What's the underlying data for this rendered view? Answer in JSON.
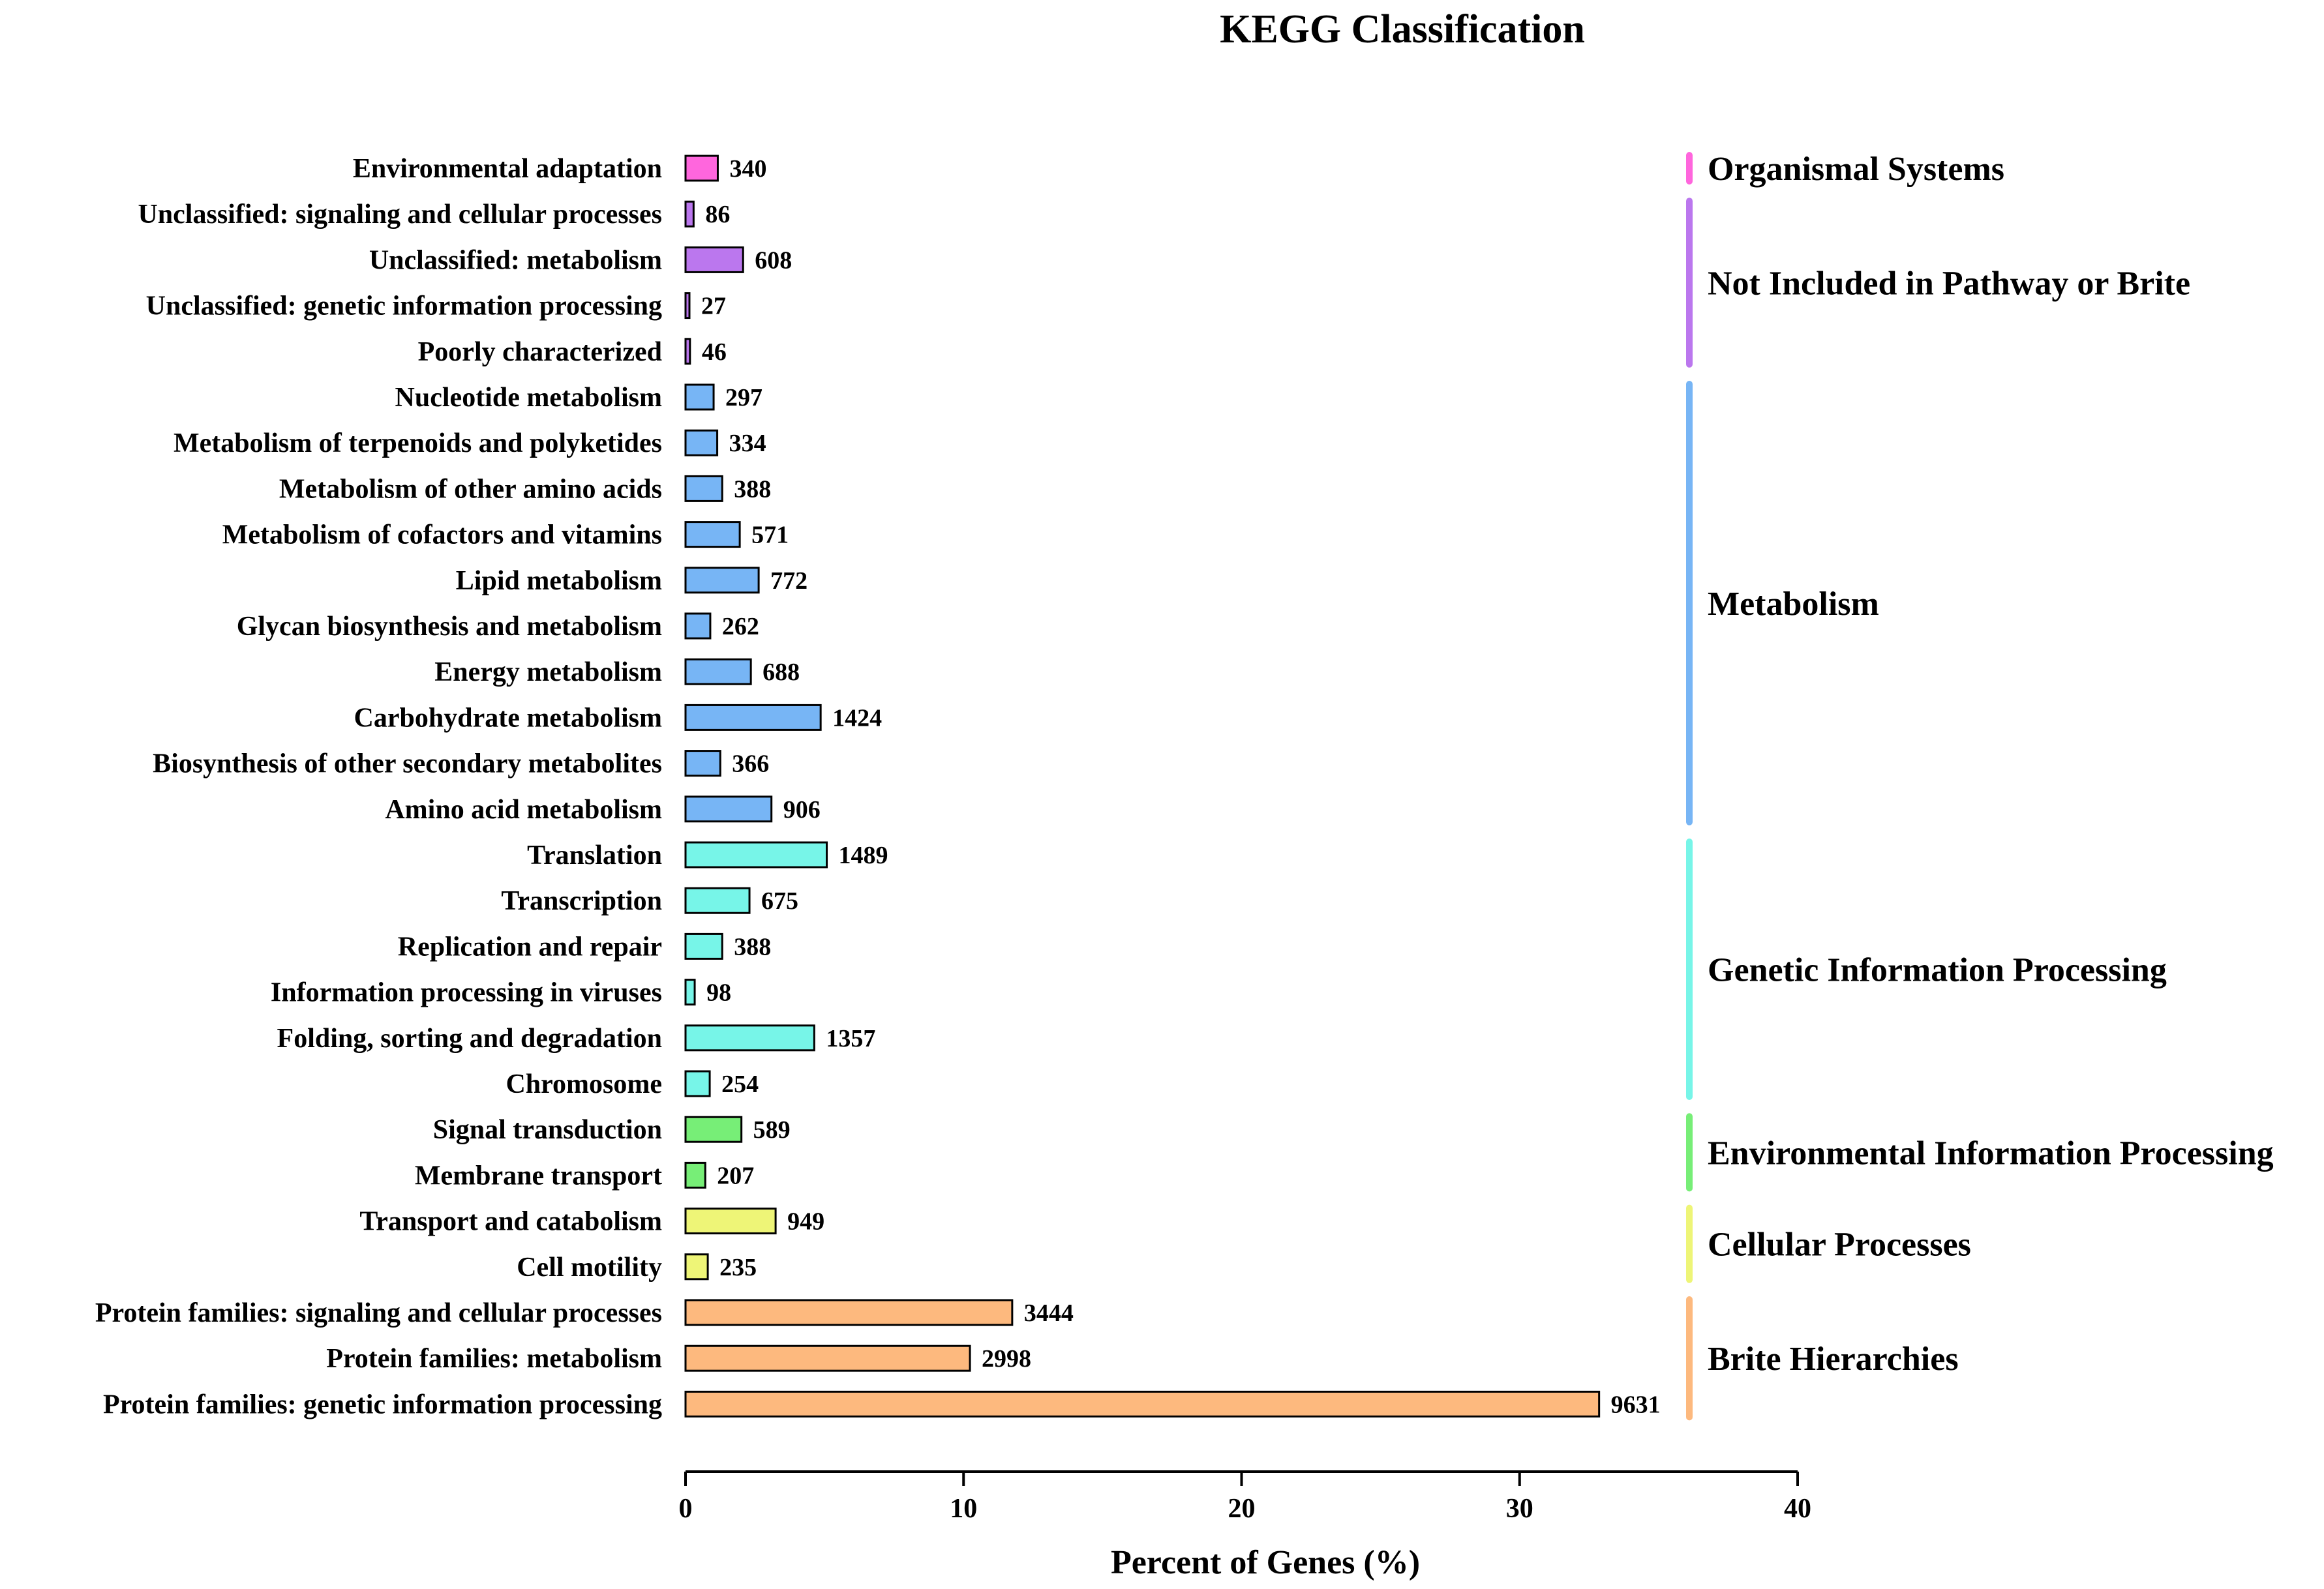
{
  "chart_data": {
    "type": "bar",
    "orientation": "horizontal",
    "title": "KEGG Classification",
    "xlabel": "Percent of Genes (%)",
    "ylabel": "",
    "xlim": [
      0,
      40
    ],
    "xticks": [
      "0",
      "10",
      "20",
      "30",
      "40"
    ],
    "grid": false,
    "categories": [
      "Environmental adaptation",
      "Unclassified: signaling and cellular processes",
      "Unclassified: metabolism",
      "Unclassified: genetic information processing",
      "Poorly characterized",
      "Nucleotide metabolism",
      "Metabolism of terpenoids and polyketides",
      "Metabolism of other amino acids",
      "Metabolism of cofactors and vitamins",
      "Lipid metabolism",
      "Glycan biosynthesis and metabolism",
      "Energy metabolism",
      "Carbohydrate metabolism",
      "Biosynthesis of other secondary metabolites",
      "Amino acid metabolism",
      "Translation",
      "Transcription",
      "Replication and repair",
      "Information processing in viruses",
      "Folding, sorting and degradation",
      "Chromosome",
      "Signal transduction",
      "Membrane transport",
      "Transport and catabolism",
      "Cell motility",
      "Protein families: signaling and cellular processes",
      "Protein families: metabolism",
      "Protein families: genetic information processing"
    ],
    "counts": [
      "340",
      "86",
      "608",
      "27",
      "46",
      "297",
      "334",
      "388",
      "571",
      "772",
      "262",
      "688",
      "1424",
      "366",
      "906",
      "1489",
      "675",
      "388",
      "98",
      "1357",
      "254",
      "589",
      "207",
      "949",
      "235",
      "3444",
      "2998",
      "9631"
    ],
    "values": [
      1.16,
      0.29,
      2.07,
      0.09,
      0.16,
      1.01,
      1.14,
      1.32,
      1.95,
      2.63,
      0.89,
      2.35,
      4.86,
      1.25,
      3.09,
      5.08,
      2.3,
      1.32,
      0.33,
      4.63,
      0.87,
      2.01,
      0.71,
      3.24,
      0.8,
      11.75,
      10.23,
      32.86
    ],
    "groups": [
      {
        "name": "Organismal Systems",
        "color": "#ff66dd",
        "start": 0,
        "end": 0
      },
      {
        "name": "Not Included in Pathway or Brite",
        "color": "#bb77ee",
        "start": 1,
        "end": 4
      },
      {
        "name": "Metabolism",
        "color": "#77b5f5",
        "start": 5,
        "end": 14
      },
      {
        "name": "Genetic Information Processing",
        "color": "#77f5e8",
        "start": 15,
        "end": 20
      },
      {
        "name": "Environmental Information Processing",
        "color": "#77ee77",
        "start": 21,
        "end": 22
      },
      {
        "name": "Cellular Processes",
        "color": "#eef577",
        "start": 23,
        "end": 24
      },
      {
        "name": "Brite Hierarchies",
        "color": "#fdb97e",
        "start": 25,
        "end": 27
      }
    ]
  }
}
